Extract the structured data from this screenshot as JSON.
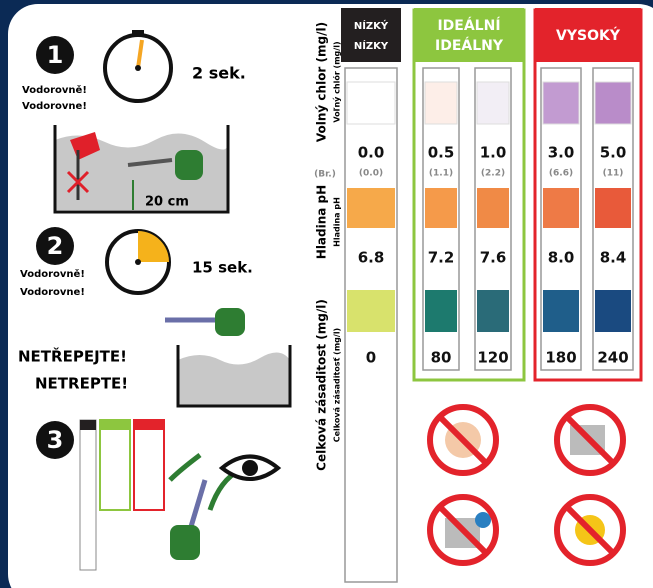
{
  "steps": [
    {
      "number": "1",
      "notes": [
        "Vodorovně!",
        "Vodorovne!"
      ],
      "time": "2 sek.",
      "depth": "20 cm"
    },
    {
      "number": "2",
      "notes": [
        "Vodorovně!",
        "Vodorovne!"
      ],
      "time": "15 sek.",
      "warning": [
        "NETŘEPEJTE!",
        "NETREPTE!"
      ]
    },
    {
      "number": "3"
    }
  ],
  "parameters": {
    "chlorine": [
      "Volný chlor (mg/l)",
      "Voľný chlór (mg/l)"
    ],
    "bromine": "(Br.)",
    "ph": [
      "Hladina pH",
      "Hladina pH"
    ],
    "alkalinity": [
      "Celková zásaditost (mg/l)",
      "Celková zásaditosť (mg/l)"
    ]
  },
  "ranges": [
    {
      "header": [
        "NÍZKÝ",
        "NÍZKY"
      ],
      "color": "#231f20",
      "strips": [
        {
          "chlorine": "0.0",
          "bromine": "(0.0)",
          "ph": "6.8",
          "alkalinity": "0",
          "colors": [
            "#ffffff",
            "#f6a94a",
            "#d8e26c"
          ]
        }
      ]
    },
    {
      "header": [
        "IDEÁLNÍ",
        "IDEÁLNY"
      ],
      "color": "#8dc63f",
      "strips": [
        {
          "chlorine": "0.5",
          "bromine": "(1.1)",
          "ph": "7.2",
          "alkalinity": "80",
          "colors": [
            "#fdeee8",
            "#f59a4a",
            "#1d7a6e"
          ]
        },
        {
          "chlorine": "1.0",
          "bromine": "(2.2)",
          "ph": "7.6",
          "alkalinity": "120",
          "colors": [
            "#f2eef5",
            "#f08a46",
            "#2a6b78"
          ]
        }
      ]
    },
    {
      "header": [
        "VYSOKÝ"
      ],
      "color": "#e3232b",
      "strips": [
        {
          "chlorine": "3.0",
          "bromine": "(6.6)",
          "ph": "8.0",
          "alkalinity": "180",
          "colors": [
            "#c29bd1",
            "#ee7a46",
            "#1f5e8a"
          ]
        },
        {
          "chlorine": "5.0",
          "bromine": "(11)",
          "ph": "8.4",
          "alkalinity": "240",
          "colors": [
            "#b98cc9",
            "#e85a3a",
            "#1a4a80"
          ]
        }
      ]
    }
  ]
}
